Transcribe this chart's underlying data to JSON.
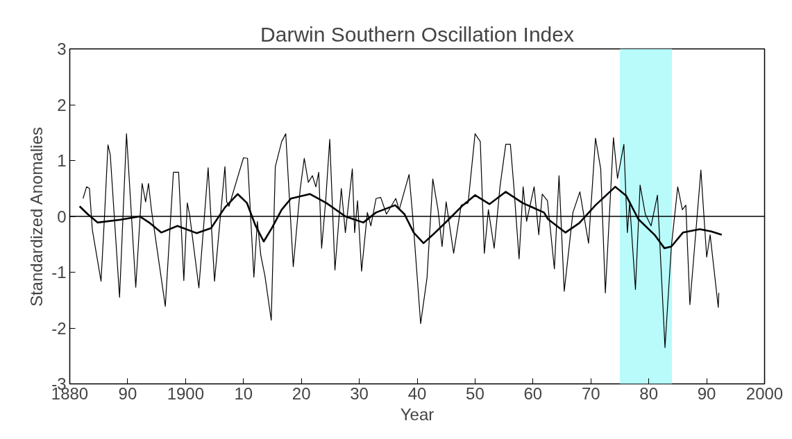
{
  "chart_data": {
    "type": "line",
    "title": "Darwin Southern Oscillation Index",
    "xlabel": "Year",
    "ylabel": "Standardized Anomalies",
    "xlim": [
      1880,
      2000
    ],
    "ylim": [
      -3,
      3
    ],
    "xticks": [
      1880,
      {
        "value": 1890,
        "label": "90"
      },
      1900,
      {
        "value": 1910,
        "label": "10"
      },
      {
        "value": 1920,
        "label": "20"
      },
      {
        "value": 1930,
        "label": "30"
      },
      {
        "value": 1940,
        "label": "40"
      },
      {
        "value": 1950,
        "label": "50"
      },
      {
        "value": 1960,
        "label": "60"
      },
      {
        "value": 1970,
        "label": "70"
      },
      {
        "value": 1980,
        "label": "80"
      },
      {
        "value": 1990,
        "label": "90"
      },
      2000
    ],
    "yticks": [
      -3,
      -2,
      -1,
      0,
      1,
      2,
      3
    ],
    "grid": false,
    "ref_lines": [
      {
        "axis": "y",
        "value": 0,
        "color": "#000000"
      }
    ],
    "bands": [
      {
        "axis": "x",
        "from": 1975,
        "to": 1984,
        "color": "#b9fbfb"
      }
    ],
    "series": [
      {
        "color": "#000000",
        "x": [
          1882.3,
          1882.9,
          1883.4,
          1883.9,
          1885.4,
          1886.0,
          1886.6,
          1887.0,
          1888.6,
          1889.8,
          1891.4,
          1892.5,
          1893.1,
          1893.6,
          1894.1,
          1896.5,
          1897.9,
          1898.8,
          1899.7,
          1900.3,
          1900.7,
          1902.3,
          1903.9,
          1905.0,
          1906.8,
          1907.1,
          1907.5,
          1910.0,
          1910.7,
          1911.8,
          1912.4,
          1913.0,
          1913.7,
          1914.8,
          1915.5,
          1916.6,
          1917.3,
          1918.6,
          1919.8,
          1920.5,
          1921.2,
          1921.9,
          1922.5,
          1923.0,
          1923.5,
          1924.2,
          1924.9,
          1925.8,
          1926.9,
          1927.6,
          1928.8,
          1929.2,
          1929.7,
          1930.4,
          1931.4,
          1932.0,
          1932.9,
          1933.7,
          1934.7,
          1936.3,
          1936.9,
          1938.6,
          1939.2,
          1940.6,
          1941.7,
          1942.7,
          1943.6,
          1944.3,
          1945.0,
          1946.3,
          1947.6,
          1948.8,
          1950.0,
          1950.9,
          1951.6,
          1952.3,
          1953.3,
          1954.3,
          1955.3,
          1956.1,
          1956.7,
          1957.6,
          1958.3,
          1958.9,
          1960.2,
          1961.0,
          1961.6,
          1962.5,
          1963.7,
          1964.5,
          1965.4,
          1966.9,
          1968.1,
          1969.6,
          1970.8,
          1971.7,
          1972.5,
          1973.9,
          1974.6,
          1975.7,
          1976.3,
          1976.7,
          1977.7,
          1978.5,
          1979.4,
          1980.4,
          1981.5,
          1982.8,
          1983.9,
          1985.0,
          1985.8,
          1986.4,
          1987.1,
          1989.0,
          1990.0,
          1990.6,
          1992.0,
          1992.1
        ],
        "values": [
          0.32,
          0.53,
          0.5,
          -0.24,
          -1.16,
          0.0,
          1.28,
          1.1,
          -1.45,
          1.48,
          -1.27,
          0.59,
          0.26,
          0.59,
          0.12,
          -1.61,
          0.79,
          0.79,
          -1.15,
          0.24,
          0.03,
          -1.28,
          0.87,
          -1.16,
          0.89,
          0.26,
          0.18,
          1.05,
          1.04,
          -1.09,
          -0.09,
          -0.7,
          -1.06,
          -1.86,
          0.89,
          1.34,
          1.48,
          -0.9,
          0.49,
          1.04,
          0.61,
          0.73,
          0.53,
          0.79,
          -0.57,
          0.28,
          1.38,
          -0.96,
          0.5,
          -0.29,
          0.85,
          -0.29,
          0.28,
          -0.98,
          0.07,
          -0.17,
          0.32,
          0.34,
          0.04,
          0.32,
          0.12,
          0.75,
          0.04,
          -1.92,
          -1.1,
          0.67,
          0.12,
          -0.54,
          0.26,
          -0.66,
          0.2,
          0.24,
          1.48,
          1.34,
          -0.66,
          0.12,
          -0.57,
          0.53,
          1.29,
          1.29,
          0.53,
          -0.76,
          0.53,
          -0.09,
          0.53,
          -0.33,
          0.4,
          0.28,
          -0.94,
          0.73,
          -1.34,
          0.07,
          0.44,
          -0.48,
          1.4,
          0.85,
          -1.37,
          1.41,
          0.68,
          1.29,
          -0.29,
          0.24,
          -1.31,
          0.56,
          0.04,
          -0.17,
          0.38,
          -2.35,
          -0.54,
          0.53,
          0.12,
          0.2,
          -1.58,
          0.83,
          -0.73,
          -0.33,
          -1.63,
          -1.37
        ]
      },
      {
        "color": "#000000",
        "x": [
          1881.7,
          1883.1,
          1884.8,
          1888.8,
          1892.1,
          1893.7,
          1895.8,
          1898.6,
          1901.9,
          1904.4,
          1906.8,
          1909.0,
          1910.6,
          1912.1,
          1913.5,
          1914.9,
          1916.6,
          1918.2,
          1921.5,
          1924.3,
          1927.6,
          1930.7,
          1932.9,
          1936.2,
          1937.8,
          1939.4,
          1941.1,
          1942.7,
          1945.5,
          1947.9,
          1950.0,
          1952.5,
          1955.3,
          1958.2,
          1961.9,
          1962.6,
          1965.6,
          1968.0,
          1970.8,
          1974.2,
          1976.1,
          1978.2,
          1981.0,
          1982.7,
          1983.9,
          1985.9,
          1988.8,
          1990.8,
          1992.6
        ],
        "values": [
          0.18,
          0.04,
          -0.11,
          -0.06,
          0.0,
          -0.11,
          -0.29,
          -0.17,
          -0.3,
          -0.21,
          0.16,
          0.4,
          0.24,
          -0.17,
          -0.45,
          -0.21,
          0.12,
          0.32,
          0.4,
          0.24,
          0.0,
          -0.11,
          0.07,
          0.2,
          0.04,
          -0.29,
          -0.48,
          -0.33,
          -0.05,
          0.2,
          0.38,
          0.22,
          0.44,
          0.24,
          0.07,
          -0.05,
          -0.29,
          -0.12,
          0.2,
          0.53,
          0.37,
          -0.05,
          -0.33,
          -0.57,
          -0.54,
          -0.29,
          -0.23,
          -0.27,
          -0.33
        ]
      }
    ]
  }
}
